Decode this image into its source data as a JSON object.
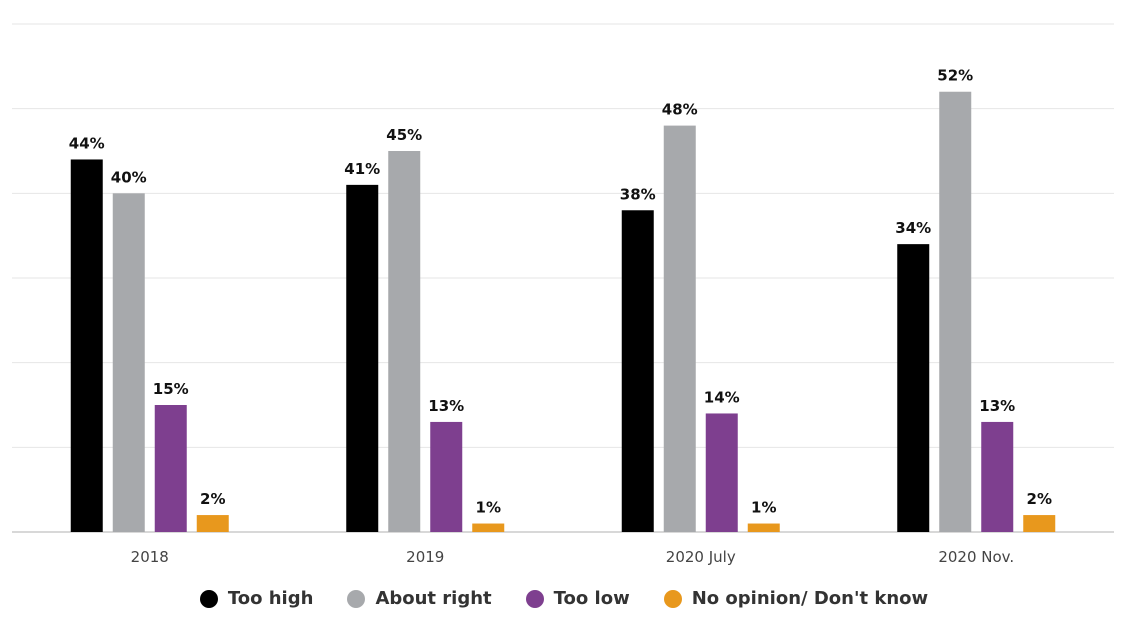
{
  "chart_data": {
    "type": "bar",
    "categories": [
      "2018",
      "2019",
      "2020 July",
      "2020 Nov."
    ],
    "series": [
      {
        "name": "Too high",
        "color": "#000000",
        "values": [
          44,
          41,
          38,
          34
        ],
        "labels": [
          "44%",
          "41%",
          "38%",
          "34%"
        ]
      },
      {
        "name": "About right",
        "color": "#a7a9ac",
        "values": [
          40,
          45,
          48,
          52
        ],
        "labels": [
          "40%",
          "45%",
          "48%",
          "52%"
        ]
      },
      {
        "name": "Too low",
        "color": "#7e3f8f",
        "values": [
          15,
          13,
          14,
          13
        ],
        "labels": [
          "15%",
          "13%",
          "14%",
          "13%"
        ]
      },
      {
        "name": "No opinion/ Don't know",
        "color": "#e8981d",
        "values": [
          2,
          1,
          1,
          2
        ],
        "labels": [
          "2%",
          "1%",
          "1%",
          "2%"
        ]
      }
    ],
    "ylim": [
      0,
      60
    ],
    "grid": true,
    "legend_position": "bottom"
  }
}
